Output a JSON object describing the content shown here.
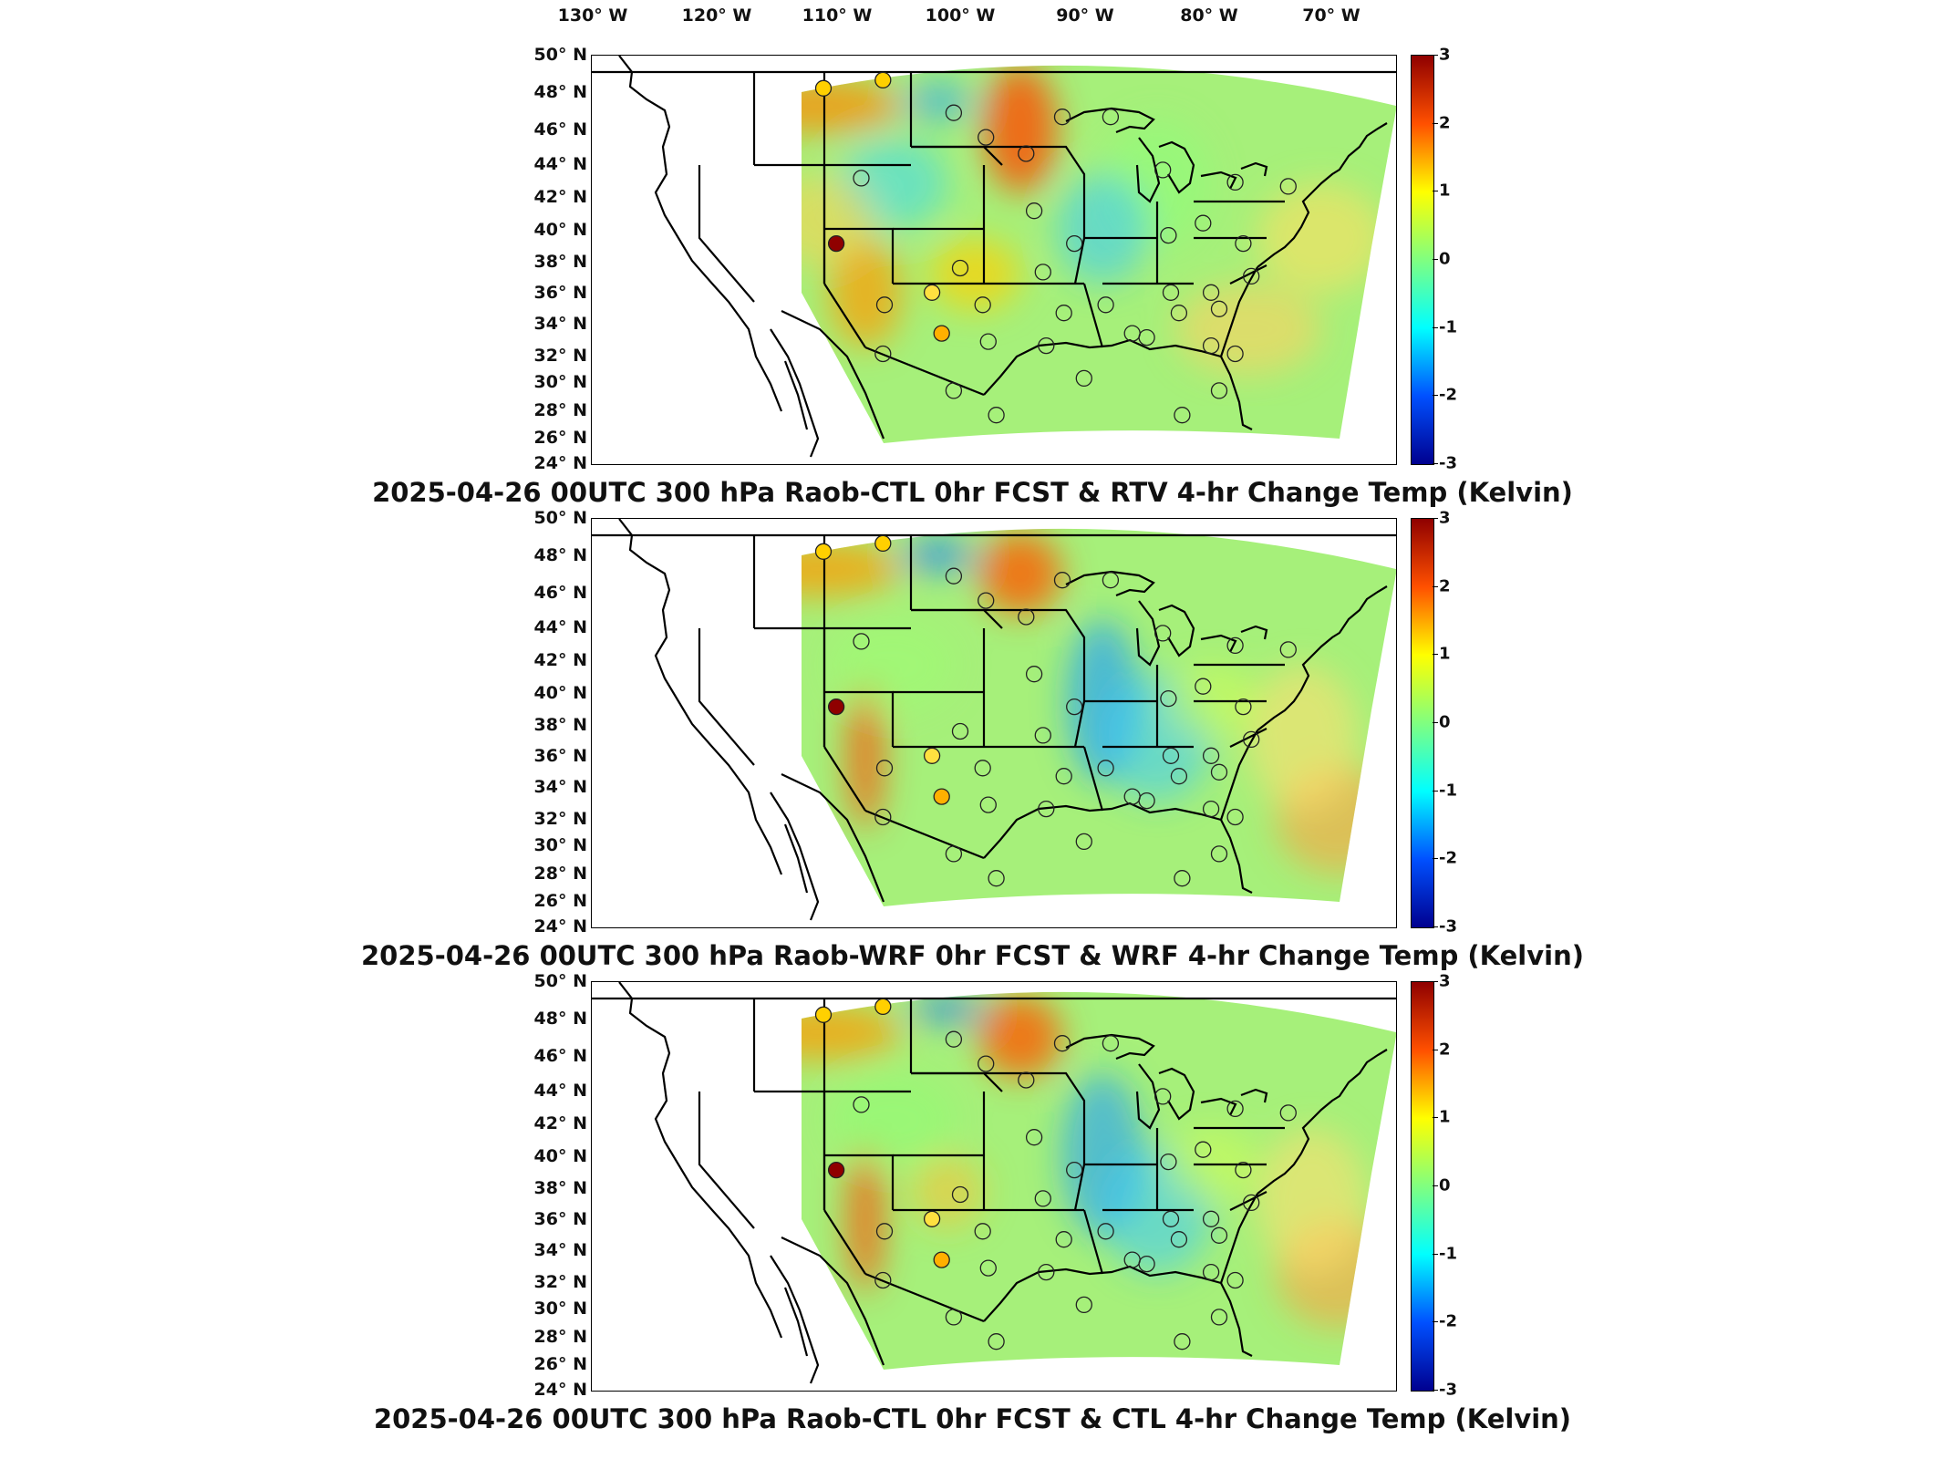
{
  "longitude_labels": [
    "130° W",
    "120° W",
    "110° W",
    "100° W",
    "90° W",
    "80° W",
    "70° W"
  ],
  "latitude_labels": [
    "50° N",
    "48° N",
    "46° N",
    "44° N",
    "42° N",
    "40° N",
    "38° N",
    "36° N",
    "34° N",
    "32° N",
    "30° N",
    "28° N",
    "26° N",
    "24° N"
  ],
  "colorbar": {
    "ticks": [
      "3",
      "2",
      "1",
      "0",
      "-1",
      "-2",
      "-3"
    ],
    "range": [
      -3,
      3
    ],
    "colormap": "jet",
    "colors": [
      "#00008f",
      "#0050ff",
      "#00ffff",
      "#80ff80",
      "#ffff00",
      "#ff5000",
      "#8f0000"
    ]
  },
  "panels": [
    {
      "title": "2025-04-26 00UTC 300 hPa Raob-CTL 0hr FCST & RTV 4-hr Change Temp (Kelvin)",
      "variant": "rtv"
    },
    {
      "title": "2025-04-26 00UTC 300 hPa Raob-WRF 0hr FCST & WRF 4-hr Change Temp (Kelvin)",
      "variant": "wrf"
    },
    {
      "title": "2025-04-26 00UTC 300 hPa Raob-CTL 0hr FCST & CTL 4-hr Change Temp (Kelvin)",
      "variant": "ctl"
    }
  ]
}
